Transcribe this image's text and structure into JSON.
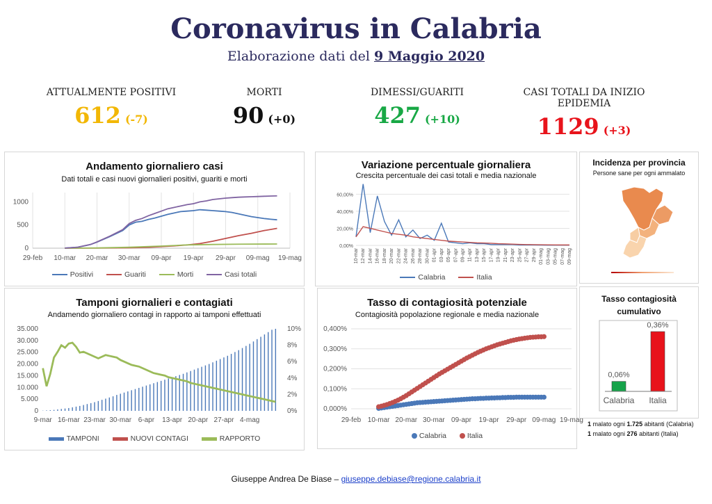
{
  "header": {
    "title": "Coronavirus in Calabria",
    "subtitle_prefix": "Elaborazione dati del",
    "subtitle_date": "9 Maggio 2020"
  },
  "stats": [
    {
      "label": "ATTUALMENTE POSITIVI",
      "value": "612",
      "delta": "(-7)",
      "color": "#f2b705"
    },
    {
      "label": "MORTI",
      "value": "90",
      "delta": "(+0)",
      "color": "#111111"
    },
    {
      "label": "DIMESSI/GUARITI",
      "value": "427",
      "delta": "(+10)",
      "color": "#18a845"
    },
    {
      "label": "CASI TOTALI DA INIZIO EPIDEMIA",
      "value": "1129",
      "delta": "(+3)",
      "color": "#e8131b"
    }
  ],
  "panels": {
    "daily": {
      "title": "Andamento giornaliero casi",
      "subtitle": "Dati totali e casi nuovi giornalieri positivi, guariti e morti"
    },
    "variation": {
      "title": "Variazione percentuale giornaliera",
      "subtitle": "Crescita percentuale dei casi totali e media nazionale"
    },
    "incidence": {
      "title": "Incidenza per provincia",
      "subtitle": "Persone sane per ogni ammalato"
    },
    "swabs": {
      "title": "Tamponi giornalieri e contagiati",
      "subtitle": "Andamendo giornaliero contagi in rapporto ai tamponi effettuati"
    },
    "contagion": {
      "title": "Tasso di contagiosità potenziale",
      "subtitle": "Contagiosità popolazione regionale e media nazionale"
    },
    "cumulative": {
      "title": "Tasso contagiosità cumulativo"
    }
  },
  "notes": [
    {
      "a": "1",
      "b": " malato ogni ",
      "c": "1.725",
      "d": " abitanti (Calabria)"
    },
    {
      "a": "1",
      "b": " malato ogni ",
      "c": "276",
      "d": " abitanti (Italia)"
    }
  ],
  "footer": {
    "author": "Giuseppe Andrea De Biase –",
    "email": "giuseppe.debiase@regione.calabria.it"
  },
  "colors": {
    "blue": "#4a78b8",
    "red": "#c0504d",
    "green": "#9bbb59",
    "purple": "#8064a2",
    "tasso_green": "#16a34a",
    "tasso_red": "#e8131b"
  },
  "chart_data": [
    {
      "id": "daily",
      "type": "line",
      "x_labels": [
        "29-feb",
        "10-mar",
        "20-mar",
        "30-mar",
        "09-apr",
        "19-apr",
        "29-apr",
        "09-mag",
        "19-mag"
      ],
      "ylim": [
        0,
        1200
      ],
      "y_ticks": [
        "0",
        "500",
        "1000"
      ],
      "y_tick_values": [
        0,
        500,
        1000
      ],
      "x_start": 0,
      "x_end": 80,
      "series": [
        {
          "name": "Positivi",
          "color": "#4a78b8",
          "x": [
            10,
            14,
            18,
            20,
            24,
            28,
            30,
            32,
            34,
            36,
            38,
            40,
            42,
            44,
            46,
            48,
            50,
            52,
            54,
            56,
            58,
            60,
            62,
            64,
            66,
            68,
            70,
            72,
            74,
            76
          ],
          "values": [
            2,
            20,
            80,
            130,
            250,
            380,
            500,
            560,
            580,
            620,
            650,
            690,
            730,
            760,
            790,
            800,
            810,
            830,
            820,
            810,
            800,
            790,
            770,
            740,
            710,
            680,
            660,
            640,
            625,
            612
          ]
        },
        {
          "name": "Guariti",
          "color": "#c0504d",
          "x": [
            10,
            20,
            30,
            36,
            40,
            44,
            48,
            52,
            56,
            60,
            64,
            68,
            72,
            76
          ],
          "values": [
            0,
            2,
            8,
            20,
            35,
            50,
            70,
            100,
            150,
            210,
            270,
            320,
            380,
            427
          ]
        },
        {
          "name": "Morti",
          "color": "#9bbb59",
          "x": [
            10,
            20,
            30,
            40,
            48,
            56,
            64,
            72,
            76
          ],
          "values": [
            0,
            5,
            20,
            45,
            70,
            80,
            86,
            89,
            90
          ]
        },
        {
          "name": "Casi totali",
          "color": "#8064a2",
          "x": [
            10,
            14,
            18,
            20,
            24,
            28,
            30,
            32,
            34,
            36,
            38,
            40,
            42,
            44,
            46,
            48,
            50,
            52,
            54,
            56,
            58,
            60,
            62,
            64,
            66,
            68,
            70,
            72,
            74,
            76
          ],
          "values": [
            2,
            20,
            80,
            135,
            260,
            400,
            530,
            600,
            640,
            700,
            750,
            800,
            850,
            880,
            910,
            940,
            960,
            1000,
            1020,
            1050,
            1065,
            1080,
            1090,
            1100,
            1105,
            1110,
            1115,
            1120,
            1125,
            1129
          ]
        }
      ]
    },
    {
      "id": "variation",
      "type": "line",
      "x_labels": [
        "10-mar",
        "12-mar",
        "14-mar",
        "16-mar",
        "18-mar",
        "20-mar",
        "22-mar",
        "24-mar",
        "26-mar",
        "28-mar",
        "30-mar",
        "01-apr",
        "03-apr",
        "05-apr",
        "07-apr",
        "09-apr",
        "11-apr",
        "13-apr",
        "15-apr",
        "17-apr",
        "19-apr",
        "21-apr",
        "23-apr",
        "25-apr",
        "27-apr",
        "29-apr",
        "01-mag",
        "03-mag",
        "05-mag",
        "07-mag",
        "09-mag"
      ],
      "ylim": [
        0,
        0.75
      ],
      "y_ticks": [
        "0,00%",
        "20,00%",
        "40,00%",
        "60,00%"
      ],
      "y_tick_values": [
        0,
        0.2,
        0.4,
        0.6
      ],
      "series": [
        {
          "name": "Calabria",
          "color": "#4a78b8",
          "values": [
            0.1,
            0.72,
            0.15,
            0.58,
            0.28,
            0.12,
            0.3,
            0.1,
            0.18,
            0.08,
            0.12,
            0.06,
            0.26,
            0.04,
            0.03,
            0.02,
            0.03,
            0.02,
            0.02,
            0.01,
            0.01,
            0.01,
            0.01,
            0.005,
            0.005,
            0.005,
            0.004,
            0.003,
            0.003,
            0.003,
            0.003
          ]
        },
        {
          "name": "Italia",
          "color": "#c0504d",
          "values": [
            0.1,
            0.22,
            0.2,
            0.18,
            0.16,
            0.14,
            0.13,
            0.12,
            0.1,
            0.09,
            0.08,
            0.07,
            0.06,
            0.05,
            0.045,
            0.04,
            0.035,
            0.03,
            0.028,
            0.025,
            0.02,
            0.018,
            0.015,
            0.012,
            0.01,
            0.009,
            0.008,
            0.007,
            0.006,
            0.005,
            0.005
          ]
        }
      ]
    },
    {
      "id": "swabs",
      "type": "bar+line",
      "x_labels": [
        "9-mar",
        "16-mar",
        "23-mar",
        "30-mar",
        "6-apr",
        "13-apr",
        "20-apr",
        "27-apr",
        "4-mag"
      ],
      "y_left_ticks": [
        "0",
        "5.000",
        "10.000",
        "15.000",
        "20.000",
        "25.000",
        "30.000",
        "35.000"
      ],
      "y_left_max": 35000,
      "y_right_ticks": [
        "0%",
        "2%",
        "4%",
        "6%",
        "8%",
        "10%"
      ],
      "y_right_max": 0.1,
      "series": [
        {
          "name": "TAMPONI",
          "color": "#4a78b8",
          "values": [
            100,
            200,
            300,
            400,
            600,
            800,
            1000,
            1200,
            1500,
            1800,
            2100,
            2500,
            2900,
            3300,
            3700,
            4200,
            4700,
            5200,
            5700,
            6200,
            6800,
            7300,
            7800,
            8300,
            8800,
            9300,
            9800,
            10300,
            10800,
            11300,
            11800,
            12300,
            12800,
            13300,
            13800,
            14300,
            14800,
            15300,
            15800,
            16400,
            17000,
            17600,
            18200,
            18800,
            19400,
            20000,
            20700,
            21400,
            22100,
            22800,
            23500,
            24300,
            25100,
            25900,
            26800,
            27700,
            28600,
            29600,
            30600,
            31600,
            32600,
            33600,
            34600,
            35000
          ]
        },
        {
          "name": "NUOVI CONTAGI",
          "color": "#c0504d",
          "values": []
        },
        {
          "name": "RAPPORTO",
          "color": "#9bbb59",
          "values": [
            0.052,
            0.03,
            0.045,
            0.065,
            0.072,
            0.08,
            0.077,
            0.082,
            0.083,
            0.078,
            0.071,
            0.072,
            0.07,
            0.068,
            0.066,
            0.064,
            0.066,
            0.068,
            0.067,
            0.066,
            0.065,
            0.062,
            0.06,
            0.058,
            0.056,
            0.055,
            0.054,
            0.052,
            0.05,
            0.048,
            0.046,
            0.045,
            0.044,
            0.043,
            0.041,
            0.04,
            0.039,
            0.038,
            0.037,
            0.036,
            0.034,
            0.033,
            0.032,
            0.031,
            0.03,
            0.029,
            0.028,
            0.027,
            0.026,
            0.025,
            0.024,
            0.023,
            0.022,
            0.021,
            0.02,
            0.019,
            0.018,
            0.017,
            0.016,
            0.015,
            0.014,
            0.013,
            0.012,
            0.011
          ]
        }
      ]
    },
    {
      "id": "contagion",
      "type": "scatter",
      "x_labels": [
        "29-feb",
        "10-mar",
        "20-mar",
        "30-mar",
        "09-apr",
        "19-apr",
        "29-apr",
        "09-mag",
        "19-mag"
      ],
      "y_ticks": [
        "0,000%",
        "0,100%",
        "0,200%",
        "0,300%",
        "0,400%"
      ],
      "y_tick_values": [
        0,
        0.001,
        0.002,
        0.003,
        0.004
      ],
      "ylim": [
        0,
        0.004
      ],
      "x_start": 0,
      "x_end": 80,
      "series": [
        {
          "name": "Calabria",
          "color": "#4a78b8",
          "x_from": 10,
          "x_to": 70,
          "values": [
            2e-05,
            4e-05,
            6e-05,
            8e-05,
            0.0001,
            0.00012,
            0.00014,
            0.00016,
            0.00018,
            0.0002,
            0.00022,
            0.00024,
            0.00026,
            0.00028,
            0.0003,
            0.00031,
            0.00032,
            0.00033,
            0.00034,
            0.00035,
            0.00036,
            0.00037,
            0.00038,
            0.00039,
            0.0004,
            0.00041,
            0.00042,
            0.00043,
            0.00044,
            0.00045,
            0.00046,
            0.00047,
            0.00048,
            0.00049,
            0.0005,
            0.0005,
            0.00051,
            0.00052,
            0.00052,
            0.00053,
            0.00053,
            0.00054,
            0.00054,
            0.00055,
            0.00055,
            0.00056,
            0.00056,
            0.00057,
            0.00057,
            0.00057,
            0.00058,
            0.00058,
            0.00058,
            0.00058,
            0.00058,
            0.00058,
            0.00058,
            0.00058,
            0.00058,
            0.00058,
            0.00058
          ]
        },
        {
          "name": "Italia",
          "color": "#c0504d",
          "x_from": 10,
          "x_to": 70,
          "values": [
            0.0001,
            0.00013,
            0.00017,
            0.00021,
            0.00026,
            0.00031,
            0.00037,
            0.00043,
            0.0005,
            0.00058,
            0.00066,
            0.00075,
            0.00084,
            0.00093,
            0.00102,
            0.00111,
            0.0012,
            0.00129,
            0.00138,
            0.00147,
            0.00156,
            0.00165,
            0.00174,
            0.00182,
            0.0019,
            0.00198,
            0.00206,
            0.00214,
            0.00222,
            0.0023,
            0.00238,
            0.00246,
            0.00254,
            0.00261,
            0.00268,
            0.00275,
            0.00282,
            0.00288,
            0.00294,
            0.003,
            0.00305,
            0.0031,
            0.00315,
            0.0032,
            0.00324,
            0.00328,
            0.00332,
            0.00336,
            0.0034,
            0.00343,
            0.00346,
            0.00349,
            0.00351,
            0.00353,
            0.00355,
            0.00357,
            0.00358,
            0.00359,
            0.0036,
            0.0036,
            0.00361
          ]
        }
      ]
    },
    {
      "id": "cumulative",
      "type": "bar",
      "categories": [
        "Calabria",
        "Italia"
      ],
      "values": [
        0.0006,
        0.0036
      ],
      "data_labels": [
        "0,06%",
        "0,36%"
      ],
      "colors": [
        "#16a34a",
        "#e8131b"
      ],
      "ylim": [
        0,
        0.0036
      ]
    }
  ]
}
